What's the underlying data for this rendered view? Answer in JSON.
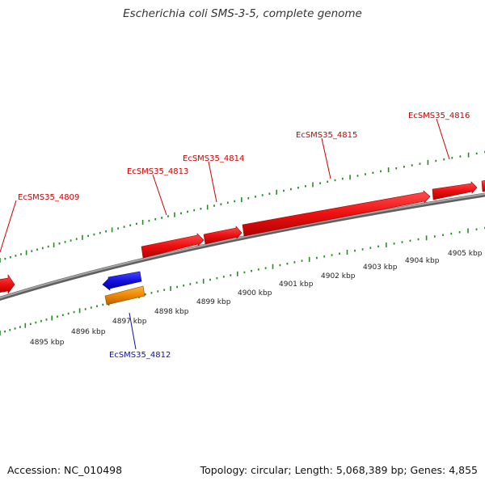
{
  "title": "Escherichia coli SMS-3-5, complete genome",
  "footer": {
    "accession": "Accession: NC_010498",
    "summary": "Topology: circular; Length: 5,068,389 bp; Genes: 4,855"
  },
  "colors": {
    "forward_gene": "#ee1111",
    "reverse_gene": "#1111dd",
    "other_feature": "#ee8800",
    "backbone": "#8a8a8a",
    "tick": "#2a8a2a",
    "forward_label": "#cc0000",
    "reverse_label": "#1111aa"
  },
  "scale_labels": [
    "4895 kbp",
    "4896 kbp",
    "4897 kbp",
    "4898 kbp",
    "4899 kbp",
    "4900 kbp",
    "4901 kbp",
    "4902 kbp",
    "4903 kbp",
    "4904 kbp",
    "4905 kbp"
  ],
  "gene_labels": [
    "EcSMS35_4809",
    "EcSMS35_4813",
    "EcSMS35_4814",
    "EcSMS35_4815",
    "EcSMS35_4816",
    "EcSMS35_4812"
  ]
}
